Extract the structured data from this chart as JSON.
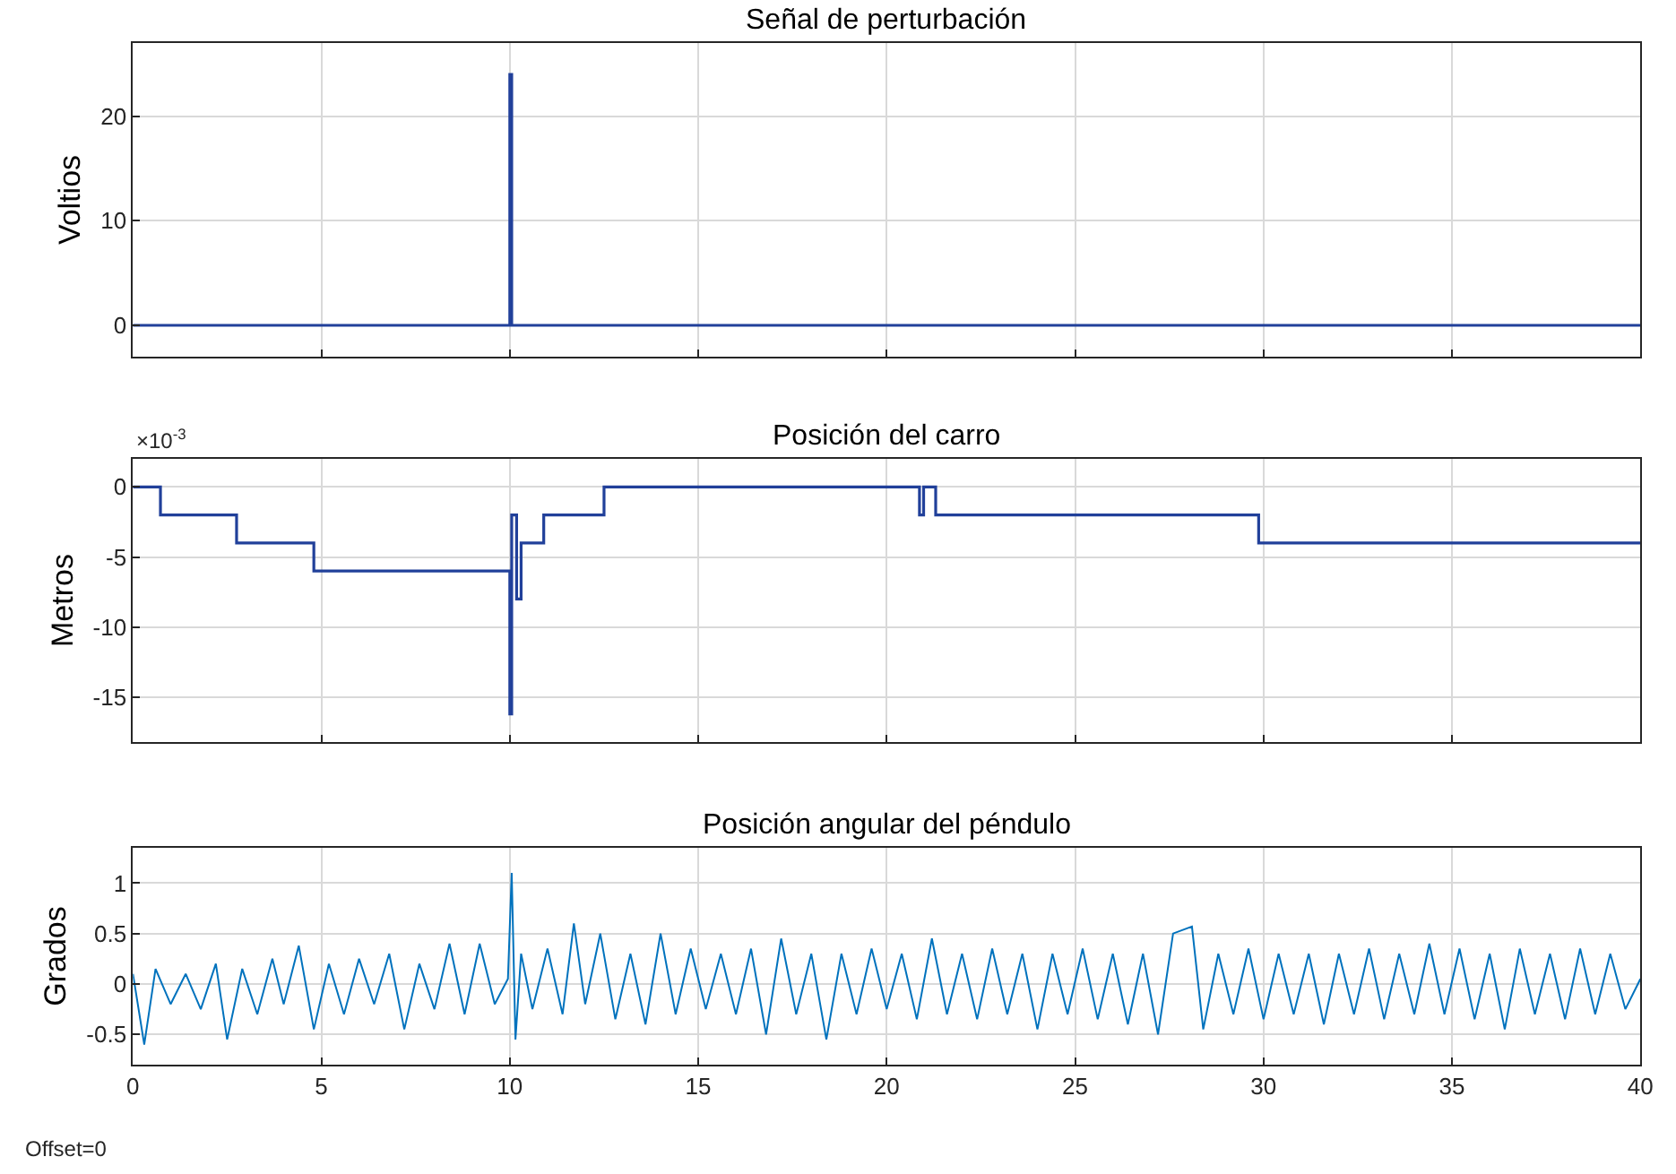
{
  "chart_data": [
    {
      "type": "line",
      "title": "Señal de perturbación",
      "ylabel": "Voltios",
      "xlim": [
        0,
        40
      ],
      "xticks": [
        0,
        5,
        10,
        15,
        20,
        25,
        30,
        35,
        40
      ],
      "ylim": [
        -3,
        27
      ],
      "yticks": [
        0,
        10,
        20
      ],
      "grid": true,
      "tick_labels": "y",
      "series": [
        {
          "color": "#21409a",
          "x": [
            0,
            10,
            10,
            10.05,
            10.05,
            40
          ],
          "values": [
            0,
            0,
            24,
            24,
            0,
            0
          ]
        }
      ]
    },
    {
      "type": "step",
      "title": "Posición del carro",
      "ylabel": "Metros",
      "annotations": [
        "×10$^{-3}$"
      ],
      "xlim": [
        0,
        40
      ],
      "xticks": [
        0,
        5,
        10,
        15,
        20,
        25,
        30,
        35,
        40
      ],
      "ylim": [
        -18.2,
        2
      ],
      "yticks": [
        -15,
        -10,
        -5,
        0
      ],
      "grid": true,
      "tick_labels": "y",
      "series": [
        {
          "color": "#21409a",
          "x": [
            0,
            0.73,
            2.75,
            4.8,
            10.0,
            10.05,
            10.18,
            10.3,
            10.4,
            10.9,
            12.5,
            20.87,
            20.98,
            21.3,
            29.87,
            40
          ],
          "values": [
            0,
            -2,
            -4,
            -6,
            -16.2,
            -2,
            -8,
            -4,
            -4,
            -2,
            0,
            -2,
            0,
            -2,
            -4,
            -4
          ]
        }
      ]
    },
    {
      "type": "line",
      "title": "Posición angular del péndulo",
      "ylabel": "Grados",
      "annotations": [
        "Offset=0"
      ],
      "xlim": [
        0,
        40
      ],
      "xticks": [
        0,
        5,
        10,
        15,
        20,
        25,
        30,
        35,
        40
      ],
      "ylim": [
        -0.8,
        1.35
      ],
      "yticks": [
        -0.5,
        0,
        0.5,
        1
      ],
      "grid": true,
      "series": [
        {
          "color": "#0072bd",
          "x": [
            0,
            0.3,
            0.6,
            1.0,
            1.4,
            1.8,
            2.2,
            2.5,
            2.9,
            3.3,
            3.7,
            4.0,
            4.4,
            4.8,
            5.2,
            5.6,
            6.0,
            6.4,
            6.8,
            7.2,
            7.6,
            8.0,
            8.4,
            8.8,
            9.2,
            9.6,
            9.95,
            10.05,
            10.15,
            10.3,
            10.6,
            11.0,
            11.4,
            11.7,
            12.0,
            12.4,
            12.8,
            13.2,
            13.6,
            14.0,
            14.4,
            14.8,
            15.2,
            15.6,
            16.0,
            16.4,
            16.8,
            17.2,
            17.6,
            18.0,
            18.4,
            18.8,
            19.2,
            19.6,
            20.0,
            20.4,
            20.8,
            21.2,
            21.6,
            22.0,
            22.4,
            22.8,
            23.2,
            23.6,
            24.0,
            24.4,
            24.8,
            25.2,
            25.6,
            26.0,
            26.4,
            26.8,
            27.2,
            27.6,
            28.1,
            28.4,
            28.8,
            29.2,
            29.6,
            30.0,
            30.4,
            30.8,
            31.2,
            31.6,
            32.0,
            32.4,
            32.8,
            33.2,
            33.6,
            34.0,
            34.4,
            34.8,
            35.2,
            35.6,
            36.0,
            36.4,
            36.8,
            37.2,
            37.6,
            38.0,
            38.4,
            38.8,
            39.2,
            39.6,
            40.0
          ],
          "values": [
            0.1,
            -0.6,
            0.15,
            -0.2,
            0.1,
            -0.25,
            0.2,
            -0.55,
            0.15,
            -0.3,
            0.25,
            -0.2,
            0.38,
            -0.45,
            0.2,
            -0.3,
            0.25,
            -0.2,
            0.3,
            -0.45,
            0.2,
            -0.25,
            0.4,
            -0.3,
            0.4,
            -0.2,
            0.05,
            1.1,
            -0.55,
            0.3,
            -0.25,
            0.35,
            -0.3,
            0.6,
            -0.2,
            0.5,
            -0.35,
            0.3,
            -0.4,
            0.5,
            -0.3,
            0.35,
            -0.25,
            0.3,
            -0.3,
            0.35,
            -0.5,
            0.45,
            -0.3,
            0.3,
            -0.55,
            0.3,
            -0.3,
            0.35,
            -0.25,
            0.3,
            -0.35,
            0.45,
            -0.3,
            0.3,
            -0.35,
            0.35,
            -0.3,
            0.3,
            -0.45,
            0.3,
            -0.3,
            0.35,
            -0.35,
            0.3,
            -0.4,
            0.3,
            -0.5,
            0.5,
            0.57,
            -0.45,
            0.3,
            -0.3,
            0.35,
            -0.35,
            0.3,
            -0.3,
            0.3,
            -0.4,
            0.3,
            -0.3,
            0.35,
            -0.35,
            0.3,
            -0.3,
            0.4,
            -0.3,
            0.35,
            -0.35,
            0.3,
            -0.45,
            0.35,
            -0.3,
            0.3,
            -0.35,
            0.35,
            -0.3,
            0.3,
            -0.25,
            0.05
          ]
        }
      ]
    }
  ]
}
